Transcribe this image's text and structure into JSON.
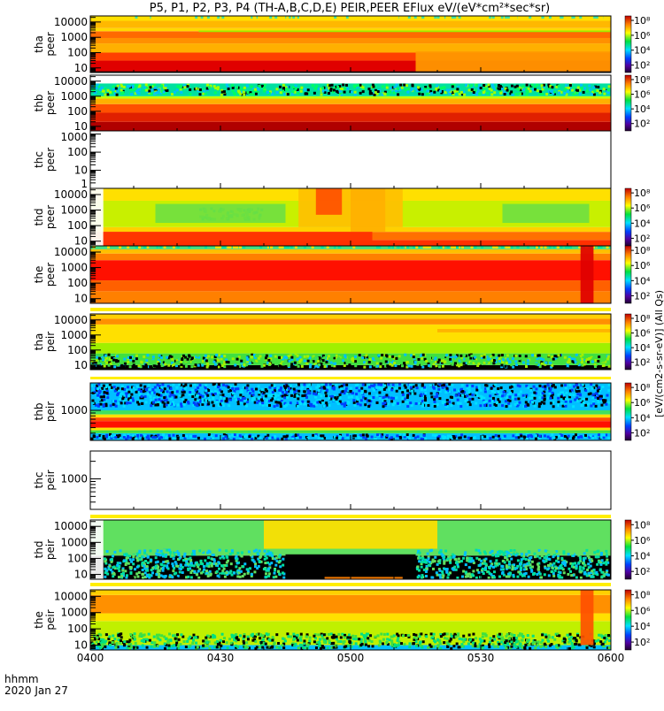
{
  "chart_data": {
    "type": "heatmap",
    "title": "P5, P1, P2, P3, P4 (TH-A,B,C,D,E) PEIR,PEER EFlux eV/(eV*cm²*sec*sr)",
    "colorbar_label": "[eV/(cm2-s-sr-eV)] (All Qs)",
    "colorbar_ticks": [
      "10²",
      "10⁴",
      "10⁶",
      "10⁸"
    ],
    "colorbar_log_range": [
      1,
      8.6
    ],
    "x_axis": {
      "label": "hhmm",
      "date": "2020 Jan 27",
      "range_minutes": [
        0,
        120
      ],
      "ticks": [
        {
          "t": 0,
          "label": "0400"
        },
        {
          "t": 30,
          "label": "0430"
        },
        {
          "t": 60,
          "label": "0500"
        },
        {
          "t": 90,
          "label": "0530"
        },
        {
          "t": 120,
          "label": "0600"
        }
      ]
    },
    "panels": [
      {
        "probe": "tha",
        "species": "peer",
        "ylim": [
          5,
          25000
        ],
        "yticks": [
          "10",
          "100",
          "1000",
          "10000"
        ],
        "colorbar": true,
        "bands": [
          [
            5,
            30,
            "#e00000"
          ],
          [
            30,
            100,
            "#ff4000"
          ],
          [
            100,
            400,
            "#ffb000"
          ],
          [
            400,
            900,
            "#ff9000"
          ],
          [
            900,
            2500,
            "#ff6a00"
          ],
          [
            2500,
            4000,
            "#ffd800"
          ],
          [
            4000,
            12000,
            "#ffb800"
          ],
          [
            12000,
            25000,
            "#ffe000"
          ]
        ],
        "patches": [
          [
            75,
            120,
            5,
            120,
            "#ff9a00"
          ],
          [
            25,
            120,
            2200,
            2800,
            "#9af000"
          ],
          [
            0,
            120,
            5,
            6,
            "#000000"
          ]
        ],
        "noise": [
          [
            0,
            120,
            18000,
            25000,
            [
              "#40e0a0",
              "#ffe000"
            ]
          ]
        ]
      },
      {
        "probe": "thb",
        "species": "peer",
        "ylim": [
          5,
          25000
        ],
        "yticks": [
          "10",
          "100",
          "1000",
          "10000"
        ],
        "colorbar": true,
        "bands": [
          [
            5,
            20,
            "#b00000"
          ],
          [
            20,
            80,
            "#e02000"
          ],
          [
            80,
            300,
            "#ff5000"
          ],
          [
            300,
            700,
            "#ffb000"
          ],
          [
            700,
            1000,
            "#c0ff00"
          ],
          [
            1000,
            7000,
            "#00e0a0"
          ]
        ],
        "patches": [],
        "noise": [
          [
            0,
            120,
            1000,
            7000,
            [
              "#00ff60",
              "#00c0ff",
              "#000000",
              "#a0ff00"
            ]
          ]
        ]
      },
      {
        "probe": "thc",
        "species": "peer",
        "ylim": [
          1,
          1500
        ],
        "yticks": [
          "1",
          "10",
          "100",
          "1000"
        ],
        "colorbar": false,
        "bands": [],
        "patches": [],
        "noise": []
      },
      {
        "probe": "thd",
        "species": "peer",
        "ylim": [
          5,
          25000
        ],
        "yticks": [
          "10",
          "100",
          "1000",
          "10000"
        ],
        "colorbar": true,
        "bands": [
          [
            5,
            12,
            "#ff3000"
          ],
          [
            12,
            40,
            "#ff7000"
          ],
          [
            40,
            80,
            "#ffd000"
          ],
          [
            80,
            4000,
            "#c8f000"
          ],
          [
            4000,
            25000,
            "#ffe000"
          ]
        ],
        "patches": [
          [
            0,
            3,
            5,
            25000,
            "#ffffff"
          ],
          [
            15,
            45,
            150,
            2500,
            "#70e040"
          ],
          [
            95,
            115,
            150,
            2500,
            "#70e040"
          ],
          [
            48,
            72,
            80,
            25000,
            "#ffc000"
          ],
          [
            52,
            58,
            500,
            25000,
            "#ff5000"
          ],
          [
            60,
            68,
            40,
            25000,
            "#ffb000"
          ],
          [
            3,
            65,
            5,
            40,
            "#ff3000"
          ]
        ],
        "noise": [
          [
            25,
            40,
            200,
            1500,
            [
              "#00d080",
              "#40e040"
            ]
          ]
        ]
      },
      {
        "probe": "the",
        "species": "peer",
        "ylim": [
          5,
          25000
        ],
        "yticks": [
          "10",
          "100",
          "1000",
          "10000"
        ],
        "colorbar": true,
        "bands": [
          [
            5,
            30,
            "#ff8000"
          ],
          [
            30,
            150,
            "#ff6000"
          ],
          [
            150,
            3000,
            "#ff1000"
          ],
          [
            3000,
            8000,
            "#ff8000"
          ],
          [
            8000,
            15000,
            "#ffc000"
          ],
          [
            15000,
            25000,
            "#40e080"
          ]
        ],
        "patches": [
          [
            113,
            116,
            5,
            25000,
            "#e00000"
          ]
        ],
        "noise": [
          [
            0,
            120,
            17000,
            25000,
            [
              "#00e0a0",
              "#ffe000"
            ]
          ]
        ]
      },
      {
        "probe": "tha",
        "species": "peir",
        "ylim": [
          5,
          25000
        ],
        "yticks": [
          "10",
          "100",
          "1000",
          "10000"
        ],
        "colorbar": true,
        "bands": [
          [
            5,
            10,
            "#000000"
          ],
          [
            10,
            60,
            "#40e040"
          ],
          [
            60,
            300,
            "#a0f000"
          ],
          [
            300,
            5000,
            "#ffe000"
          ],
          [
            5000,
            12000,
            "#ff9000"
          ],
          [
            12000,
            25000,
            "#ffd000"
          ]
        ],
        "patches": [
          [
            80,
            120,
            1500,
            2500,
            "#ffb000"
          ]
        ],
        "noise": [
          [
            0,
            120,
            6,
            60,
            [
              "#00c0ff",
              "#000000",
              "#40e040",
              "#a0f000"
            ]
          ]
        ]
      },
      {
        "probe": "thb",
        "species": "peir",
        "ylim": [
          300,
          3000
        ],
        "yticks": [
          "1000"
        ],
        "colorbar": true,
        "bands": [
          [
            300,
            400,
            "#00c0ff"
          ],
          [
            400,
            450,
            "#40e040"
          ],
          [
            450,
            500,
            "#ffe000"
          ],
          [
            500,
            650,
            "#ff1000"
          ],
          [
            650,
            750,
            "#ff5000"
          ],
          [
            750,
            850,
            "#ffe000"
          ],
          [
            850,
            1000,
            "#40e060"
          ],
          [
            1000,
            3000,
            "#00c0ff"
          ]
        ],
        "patches": [],
        "noise": [
          [
            0,
            120,
            300,
            400,
            [
              "#0040ff",
              "#000000",
              "#00e0ff"
            ]
          ],
          [
            0,
            120,
            1100,
            3000,
            [
              "#0040ff",
              "#000000",
              "#00e0ff"
            ]
          ]
        ]
      },
      {
        "probe": "thc",
        "species": "peir",
        "ylim": [
          300,
          3000
        ],
        "yticks": [
          "1000"
        ],
        "colorbar": false,
        "bands": [],
        "patches": [],
        "noise": []
      },
      {
        "probe": "thd",
        "species": "peir",
        "ylim": [
          5,
          25000
        ],
        "yticks": [
          "10",
          "100",
          "1000",
          "10000"
        ],
        "colorbar": true,
        "bands": [
          [
            5,
            150,
            "#000000"
          ],
          [
            150,
            25000,
            "#60e060"
          ]
        ],
        "patches": [
          [
            0,
            3,
            5,
            25000,
            "#ffffff"
          ],
          [
            40,
            80,
            400,
            25000,
            "#ffe000"
          ],
          [
            45,
            75,
            5,
            180,
            "#000000"
          ],
          [
            54,
            72,
            5,
            7,
            "#ff8000"
          ]
        ],
        "noise": [
          [
            3,
            45,
            5,
            400,
            [
              "#00e0a0",
              "#60e060",
              "#00c0ff"
            ]
          ],
          [
            75,
            120,
            5,
            400,
            [
              "#00e0a0",
              "#60e060",
              "#00c0ff"
            ]
          ]
        ]
      },
      {
        "probe": "the",
        "species": "peir",
        "ylim": [
          5,
          25000
        ],
        "yticks": [
          "10",
          "100",
          "1000",
          "10000"
        ],
        "colorbar": true,
        "bands": [
          [
            5,
            10,
            "#00c0ff"
          ],
          [
            10,
            300,
            "#c0f000"
          ],
          [
            300,
            900,
            "#ffe000"
          ],
          [
            900,
            12000,
            "#ff9000"
          ],
          [
            12000,
            25000,
            "#ffd000"
          ]
        ],
        "patches": [
          [
            113,
            116,
            10,
            25000,
            "#ff5000"
          ]
        ],
        "noise": [
          [
            0,
            120,
            5,
            60,
            [
              "#000000",
              "#00e080",
              "#40e040"
            ]
          ]
        ]
      }
    ]
  }
}
